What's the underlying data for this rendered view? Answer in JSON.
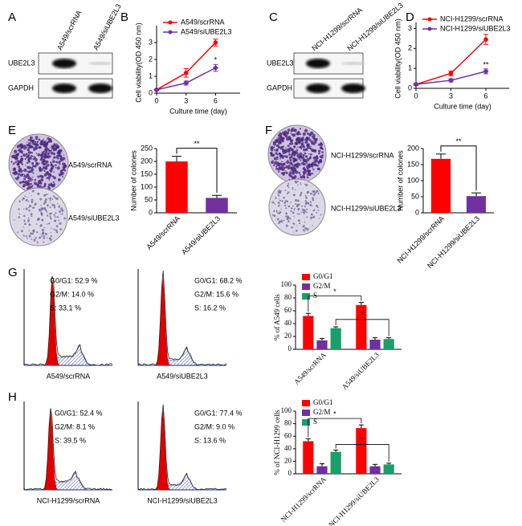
{
  "panel_labels": [
    "A",
    "B",
    "C",
    "D",
    "E",
    "F",
    "G",
    "H"
  ],
  "blots": [
    {
      "columns": [
        "A549/scrRNA",
        "A549/siUBE2L3"
      ],
      "rows": [
        "UBE2L3",
        "GAPDH"
      ]
    },
    {
      "columns": [
        "NCI-H1299/scrRNA",
        "NCI-H1299/siUBE2L3"
      ],
      "rows": [
        "UBE2L3",
        "GAPDH"
      ]
    }
  ],
  "colonies": [
    {
      "labels": [
        "A549/scrRNA",
        "A549/siUBE2L3"
      ]
    },
    {
      "labels": [
        "NCI-H1299/scrRNA",
        "NCI-H1299/siUBE2L3"
      ]
    }
  ],
  "flow": [
    {
      "histograms": [
        {
          "stats": [
            "G0/G1: 52.9 %",
            "G2/M: 14.0 %",
            "S: 33.1 %"
          ],
          "caption": "A549/scrRNA"
        },
        {
          "stats": [
            "G0/G1: 68.2 %",
            "G2/M: 15.6 %",
            "S: 16.2 %"
          ],
          "caption": "A549/siUBE2L3"
        }
      ]
    },
    {
      "histograms": [
        {
          "stats": [
            "G0/G1: 52.4 %",
            "G2/M: 8.1 %",
            "S: 39.5 %"
          ],
          "caption": "NCI-H1299/scrRNA"
        },
        {
          "stats": [
            "G0/G1: 77.4 %",
            "G2/M: 9.0 %",
            "S: 13.6 %"
          ],
          "caption": "NCI-H1299/siUBE2L3"
        }
      ]
    }
  ],
  "chart_data": [
    {
      "type": "line",
      "xlabel": "Culture time (day)",
      "ylabel": "Cell viability(OD 450 nm)",
      "x": [
        0,
        3,
        6
      ],
      "xlim": [
        0,
        8.5
      ],
      "xticks": [
        0,
        3,
        6
      ],
      "ylim": [
        0,
        4
      ],
      "yticks": [
        0,
        1,
        2,
        3
      ],
      "series": [
        {
          "name": "A549/scrRNA",
          "color": "#ff0000",
          "values": [
            0.2,
            1.2,
            3.0
          ],
          "errors": [
            0.05,
            0.25,
            0.2
          ]
        },
        {
          "name": "A549/siUBE2L3",
          "color": "#7030a0",
          "values": [
            0.2,
            0.6,
            1.5
          ],
          "errors": [
            0.05,
            0.12,
            0.2
          ]
        }
      ],
      "annotations": [
        "*"
      ]
    },
    {
      "type": "line",
      "xlabel": "Culture time (day)",
      "ylabel": "Cell viability(OD 450 nm)",
      "x": [
        0,
        3,
        6
      ],
      "xlim": [
        0,
        8
      ],
      "xticks": [
        0,
        3,
        6
      ],
      "ylim": [
        0,
        3.3
      ],
      "yticks": [
        0,
        1,
        2,
        3
      ],
      "series": [
        {
          "name": "NCI-H1299/scrRNA",
          "color": "#ff0000",
          "values": [
            0.2,
            0.75,
            2.45
          ],
          "errors": [
            0.05,
            0.12,
            0.25
          ]
        },
        {
          "name": "NCI-H1299/siUBE2L3",
          "color": "#7030a0",
          "values": [
            0.2,
            0.4,
            0.85
          ],
          "errors": [
            0.05,
            0.08,
            0.12
          ]
        }
      ],
      "annotations": [
        "**"
      ]
    },
    {
      "type": "bar",
      "ylabel": "Number of colones",
      "categories": [
        "A549/scrRNA",
        "A549/siUBE2L3"
      ],
      "values": [
        200,
        58
      ],
      "errors": [
        20,
        10
      ],
      "colors": [
        "#ff0000",
        "#7030a0"
      ],
      "ylim": [
        0,
        250
      ],
      "yticks": [
        0,
        50,
        100,
        150,
        200,
        250
      ],
      "annotations": [
        "**"
      ]
    },
    {
      "type": "bar",
      "ylabel": "Number of colones",
      "categories": [
        "NCI-H1299/scrRNA",
        "NCI-H1299/siUBE2L3"
      ],
      "values": [
        168,
        52
      ],
      "errors": [
        15,
        10
      ],
      "colors": [
        "#ff0000",
        "#7030a0"
      ],
      "ylim": [
        0,
        200
      ],
      "yticks": [
        0,
        50,
        100,
        150,
        200
      ],
      "annotations": [
        "**"
      ]
    },
    {
      "type": "grouped_bar",
      "ylabel": "% of A549 cells",
      "categories": [
        "A549/scrRNA",
        "A549/siUBE2L3"
      ],
      "ylim": [
        0,
        100
      ],
      "yticks": [
        0,
        20,
        40,
        60,
        80,
        100
      ],
      "series": [
        {
          "name": "G0/G1",
          "color": "#ff0000",
          "values": [
            52,
            69
          ],
          "errors": [
            4,
            4
          ]
        },
        {
          "name": "G2/M",
          "color": "#7030a0",
          "values": [
            14,
            15
          ],
          "errors": [
            3,
            3
          ]
        },
        {
          "name": "S",
          "color": "#1a9e6a",
          "values": [
            33,
            16
          ],
          "errors": [
            2,
            2
          ]
        }
      ],
      "annotations": [
        "*",
        "*"
      ]
    },
    {
      "type": "grouped_bar",
      "ylabel": "% of NCI-H1299 cells",
      "categories": [
        "NCI-H1299/scrRNA",
        "NCI-H1299/siUBE2L3"
      ],
      "ylim": [
        0,
        100
      ],
      "yticks": [
        0,
        20,
        40,
        60,
        80,
        100
      ],
      "series": [
        {
          "name": "G0/G1",
          "color": "#ff0000",
          "values": [
            52,
            73
          ],
          "errors": [
            4,
            5
          ]
        },
        {
          "name": "G2/M",
          "color": "#7030a0",
          "values": [
            12,
            12
          ],
          "errors": [
            4,
            3
          ]
        },
        {
          "name": "S",
          "color": "#1a9e6a",
          "values": [
            35,
            15
          ],
          "errors": [
            3,
            2
          ]
        }
      ],
      "annotations": [
        "*",
        "*"
      ]
    }
  ]
}
